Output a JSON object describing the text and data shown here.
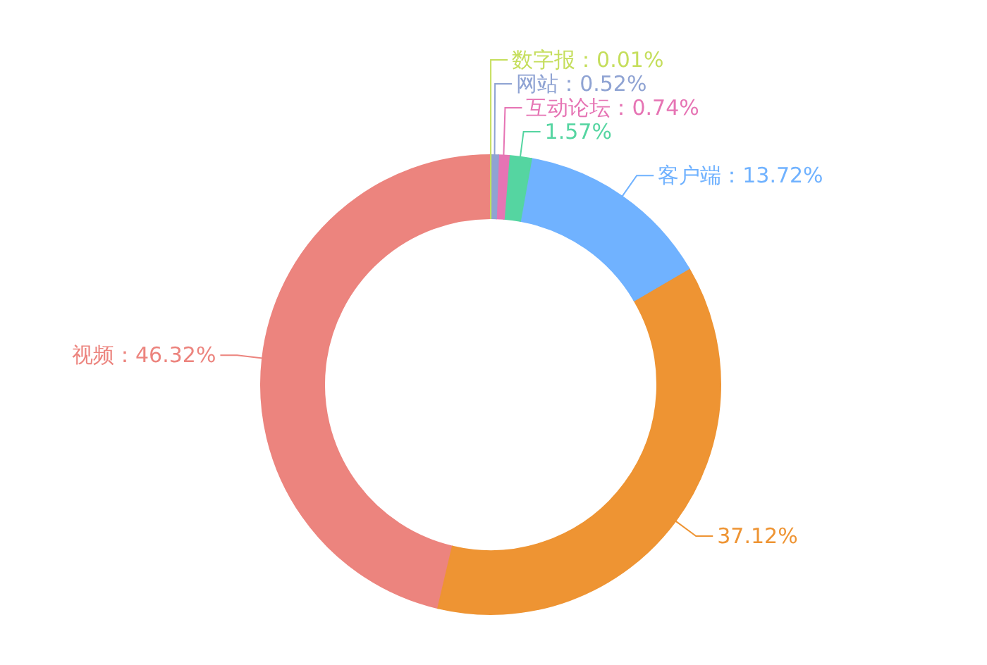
{
  "chart_data": {
    "type": "donut",
    "categories": [
      "数字报",
      "网站",
      "互动论坛",
      null,
      "客户端",
      null,
      "视频"
    ],
    "values": [
      0.01,
      0.52,
      0.74,
      1.57,
      13.72,
      37.12,
      46.32
    ],
    "colors": [
      "#c5de5c",
      "#8fa3d3",
      "#e674b4",
      "#55d5a1",
      "#70b2ff",
      "#ee9433",
      "#ec847e"
    ],
    "value_labels": [
      "：0.01%",
      "：0.52%",
      "：0.74%",
      "1.57%",
      "：13.72%",
      "37.12%",
      "：46.32%"
    ]
  }
}
